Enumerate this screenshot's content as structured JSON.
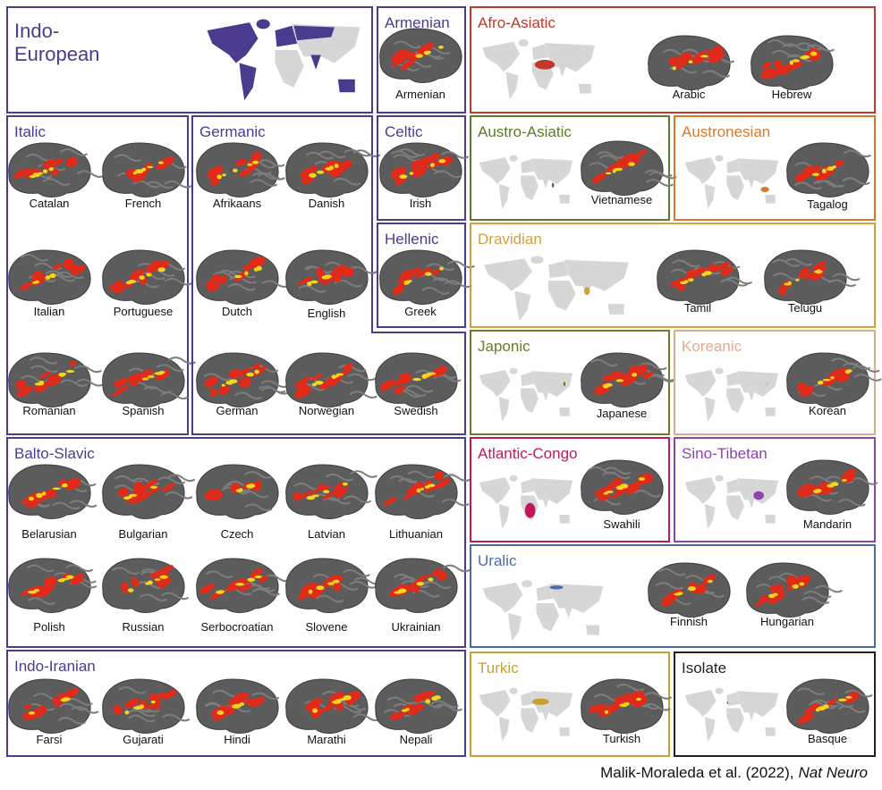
{
  "panels": [
    {
      "title": "Indo-European",
      "color": "#4b3b8f",
      "languages": []
    },
    {
      "title": "Armenian",
      "color": "#4b3b8f",
      "languages": [
        "Armenian"
      ]
    },
    {
      "title": "Afro-Asiatic",
      "color": "#c0392b",
      "languages": [
        "Arabic",
        "Hebrew"
      ]
    },
    {
      "title": "Italic",
      "color": "#4b3b8f",
      "languages": [
        "Catalan",
        "French",
        "Italian",
        "Portuguese",
        "Romanian",
        "Spanish"
      ]
    },
    {
      "title": "Germanic",
      "color": "#4b3b8f",
      "languages": [
        "Afrikaans",
        "Danish",
        "Dutch",
        "English",
        "German",
        "Norwegian",
        "Swedish"
      ]
    },
    {
      "title": "Celtic",
      "color": "#4b3b8f",
      "languages": [
        "Irish"
      ]
    },
    {
      "title": "Hellenic",
      "color": "#4b3b8f",
      "languages": [
        "Greek"
      ]
    },
    {
      "title": "Austro-Asiatic",
      "color": "#5a7a2e",
      "languages": [
        "Vietnamese"
      ]
    },
    {
      "title": "Austronesian",
      "color": "#d9772b",
      "languages": [
        "Tagalog"
      ]
    },
    {
      "title": "Dravidian",
      "color": "#d4a03c",
      "languages": [
        "Tamil",
        "Telugu"
      ]
    },
    {
      "title": "Japonic",
      "color": "#6b7a2e",
      "languages": [
        "Japanese"
      ]
    },
    {
      "title": "Koreanic",
      "color": "#e0aa8e",
      "languages": [
        "Korean"
      ]
    },
    {
      "title": "Balto-Slavic",
      "color": "#4b3b8f",
      "languages": [
        "Belarusian",
        "Bulgarian",
        "Czech",
        "Latvian",
        "Lithuanian",
        "Polish",
        "Russian",
        "Serbocroatian",
        "Slovene",
        "Ukrainian"
      ]
    },
    {
      "title": "Atlantic-Congo",
      "color": "#c2185b",
      "languages": [
        "Swahili"
      ]
    },
    {
      "title": "Sino-Tibetan",
      "color": "#8e44ad",
      "languages": [
        "Mandarin"
      ]
    },
    {
      "title": "Uralic",
      "color": "#4a6aa8",
      "languages": [
        "Finnish",
        "Hungarian"
      ]
    },
    {
      "title": "Indo-Iranian",
      "color": "#4b3b8f",
      "languages": [
        "Farsi",
        "Gujarati",
        "Hindi",
        "Marathi",
        "Nepali"
      ]
    },
    {
      "title": "Turkic",
      "color": "#c8a030",
      "languages": [
        "Turkish"
      ]
    },
    {
      "title": "Isolate",
      "color": "#222222",
      "languages": [
        "Basque"
      ]
    }
  ],
  "credit": {
    "text": "Malik-Moraleda et al. (2022),",
    "journal": "Nat Neuro"
  }
}
